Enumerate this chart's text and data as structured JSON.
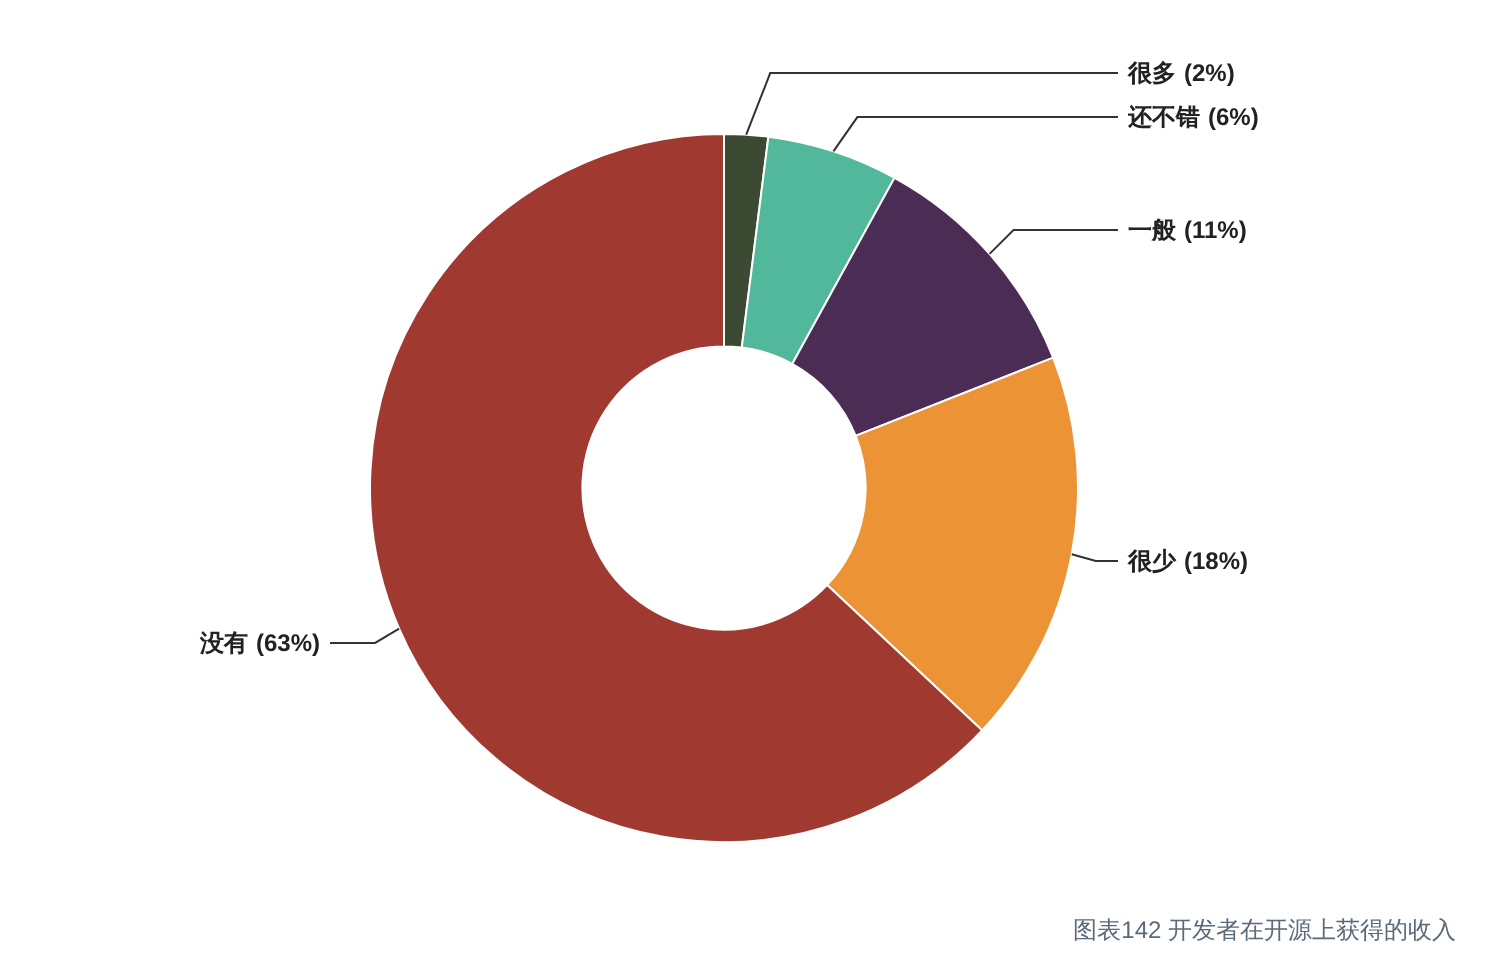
{
  "chart_data": {
    "type": "donut",
    "categories": [
      "很多",
      "还不错",
      "一般",
      "很少",
      "没有"
    ],
    "values": [
      2,
      6,
      11,
      18,
      63
    ],
    "colors": [
      "#3d4a33",
      "#52b89b",
      "#4a2c55",
      "#ec9335",
      "#a0392f"
    ],
    "value_labels": [
      "(2%)",
      "(6%)",
      "(11%)",
      "(18%)",
      "(63%)"
    ],
    "annotations": [
      "图表142 开发者在开源上获得的收入"
    ]
  }
}
